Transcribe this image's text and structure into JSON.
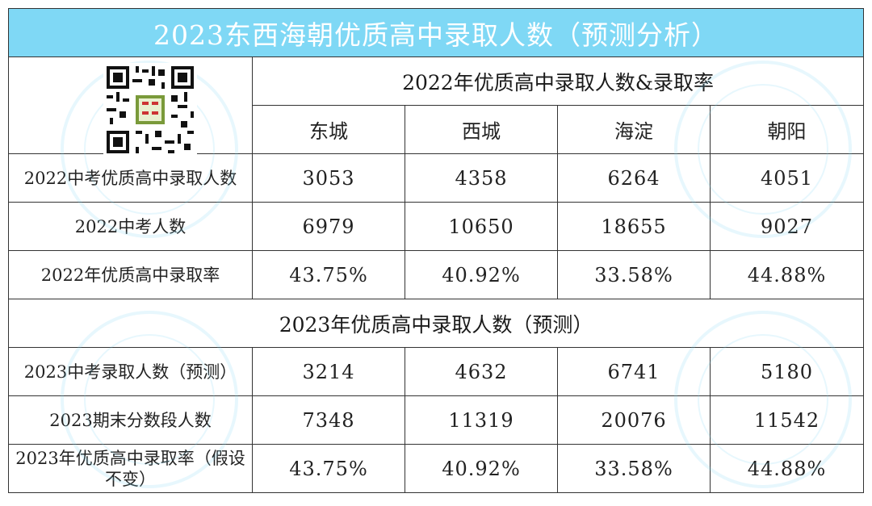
{
  "title": "2023东西海朝优质高中录取人数（预测分析）",
  "section_2022": "2022年优质高中录取人数&录取率",
  "section_2023": "2023年优质高中录取人数（预测）",
  "districts": [
    "东城",
    "西城",
    "海淀",
    "朝阳"
  ],
  "rows_2022": [
    {
      "label": "2022中考优质高中录取人数",
      "values": [
        "3053",
        "4358",
        "6264",
        "4051"
      ]
    },
    {
      "label": "2022中考人数",
      "values": [
        "6979",
        "10650",
        "18655",
        "9027"
      ]
    },
    {
      "label": "2022年优质高中录取率",
      "values": [
        "43.75%",
        "40.92%",
        "33.58%",
        "44.88%"
      ]
    }
  ],
  "rows_2023": [
    {
      "label": "2023中考录取人数（预测）",
      "values": [
        "3214",
        "4632",
        "6741",
        "5180"
      ]
    },
    {
      "label": "2023期末分数段人数",
      "values": [
        "7348",
        "11319",
        "20076",
        "11542"
      ]
    },
    {
      "label": "2023年优质高中录取率（假设不变）",
      "values": [
        "43.75%",
        "40.92%",
        "33.58%",
        "44.88%"
      ]
    }
  ],
  "colors": {
    "title_bg": "#7fd8f5",
    "title_text": "#ffffff",
    "border": "#333333"
  },
  "qr_icon": "qr-code-icon"
}
